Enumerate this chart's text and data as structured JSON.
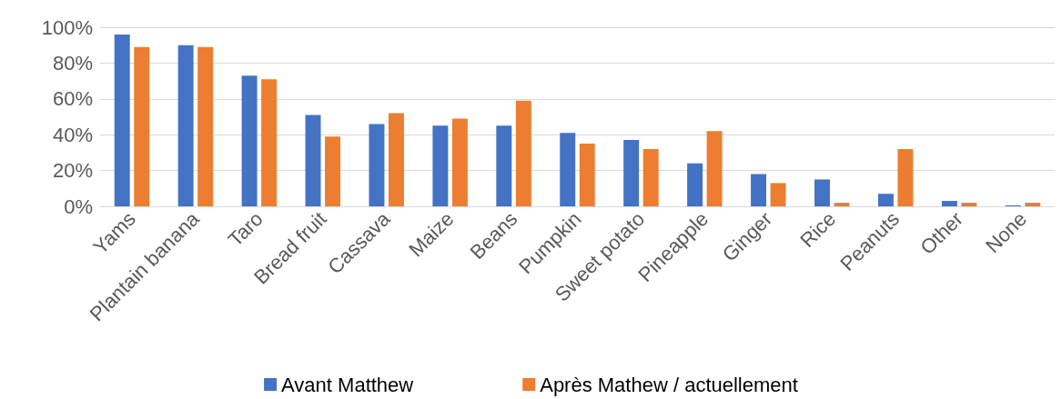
{
  "chart_data": {
    "type": "bar",
    "categories": [
      "Yams",
      "Plantain banana",
      "Taro",
      "Bread fruit",
      "Cassava",
      "Maize",
      "Beans",
      "Pumpkin",
      "Sweet potato",
      "Pineapple",
      "Ginger",
      "Rice",
      "Peanuts",
      "Other",
      "None"
    ],
    "series": [
      {
        "name": "Avant Matthew",
        "color": "#4472c4",
        "values": [
          96,
          90,
          73,
          51,
          46,
          45,
          45,
          41,
          37,
          24,
          18,
          15,
          7,
          3,
          0.5
        ]
      },
      {
        "name": "Après Mathew / actuellement",
        "color": "#ed7d31",
        "values": [
          89,
          89,
          71,
          39,
          52,
          49,
          59,
          35,
          32,
          42,
          13,
          2,
          32,
          2,
          2
        ]
      }
    ],
    "ylim": [
      0,
      100
    ],
    "yticks": [
      {
        "value": 0,
        "label": "0%"
      },
      {
        "value": 20,
        "label": "20%"
      },
      {
        "value": 40,
        "label": "40%"
      },
      {
        "value": 60,
        "label": "60%"
      },
      {
        "value": 80,
        "label": "80%"
      },
      {
        "value": 100,
        "label": "100%"
      }
    ],
    "grid": "y",
    "legend": "bottom"
  }
}
